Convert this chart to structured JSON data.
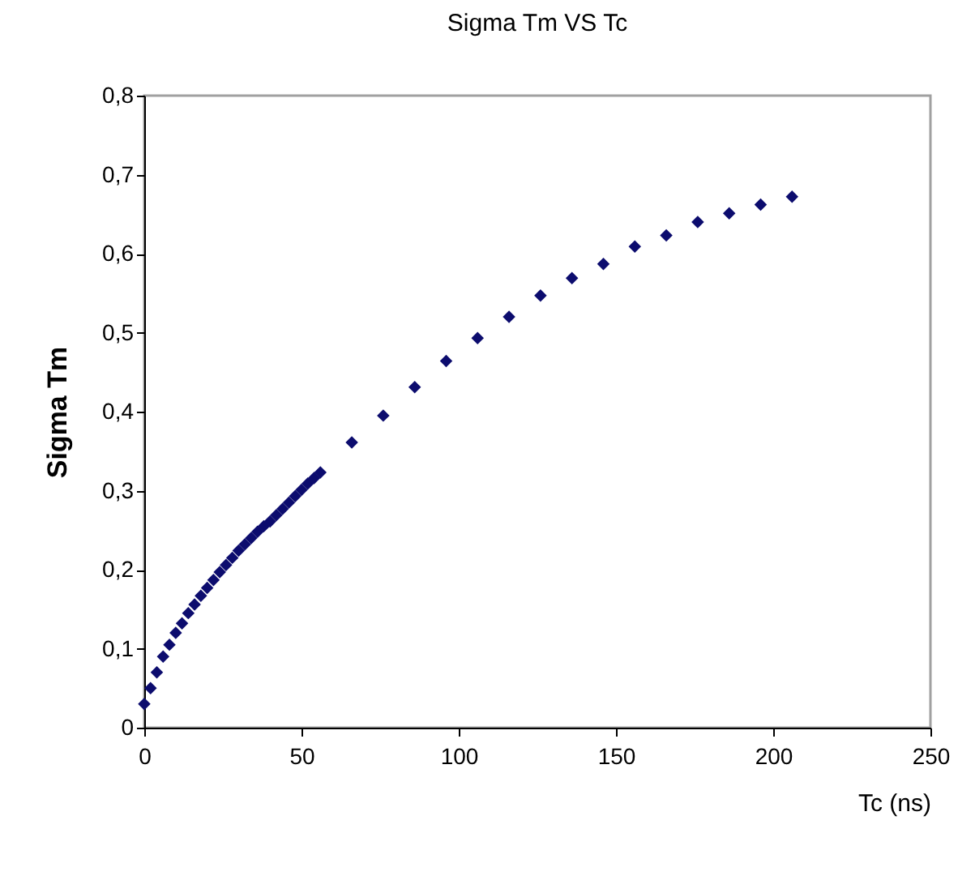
{
  "chart_data": {
    "type": "scatter",
    "title": "Sigma Tm VS Tc",
    "xlabel": "Tc (ns)",
    "ylabel": "Sigma Tm",
    "x": [
      0,
      2,
      4,
      6,
      8,
      10,
      12,
      14,
      16,
      18,
      20,
      22,
      24,
      26,
      28,
      30,
      32,
      34,
      36,
      38,
      40,
      42,
      44,
      46,
      48,
      50,
      52,
      54,
      56,
      66,
      76,
      86,
      96,
      106,
      116,
      126,
      136,
      146,
      156,
      166,
      176,
      186,
      196,
      206
    ],
    "series": [
      {
        "color": "#0c0c6e",
        "values": [
          0.03,
          0.05,
          0.07,
          0.09,
          0.105,
          0.12,
          0.132,
          0.145,
          0.156,
          0.167,
          0.177,
          0.187,
          0.197,
          0.206,
          0.215,
          0.224,
          0.232,
          0.24,
          0.248,
          0.255,
          0.261,
          0.269,
          0.277,
          0.285,
          0.293,
          0.301,
          0.309,
          0.316,
          0.323,
          0.361,
          0.395,
          0.431,
          0.464,
          0.493,
          0.52,
          0.547,
          0.569,
          0.587,
          0.609,
          0.623,
          0.64,
          0.651,
          0.662,
          0.672
        ]
      }
    ],
    "xlim": [
      0,
      250
    ],
    "xticks": [
      0,
      50,
      100,
      150,
      200,
      250
    ],
    "ylim": [
      0,
      0.8
    ],
    "yticks": [
      0,
      {
        "value": 0.1,
        "label": "0,1"
      },
      {
        "value": 0.2,
        "label": "0,2"
      },
      {
        "value": 0.3,
        "label": "0,3"
      },
      {
        "value": 0.4,
        "label": "0,4"
      },
      {
        "value": 0.5,
        "label": "0,5"
      },
      {
        "value": 0.6,
        "label": "0,6"
      },
      {
        "value": 0.7,
        "label": "0,7"
      },
      {
        "value": 0.8,
        "label": "0,8"
      }
    ],
    "grid": false,
    "legend": false,
    "marker": "diamond"
  }
}
